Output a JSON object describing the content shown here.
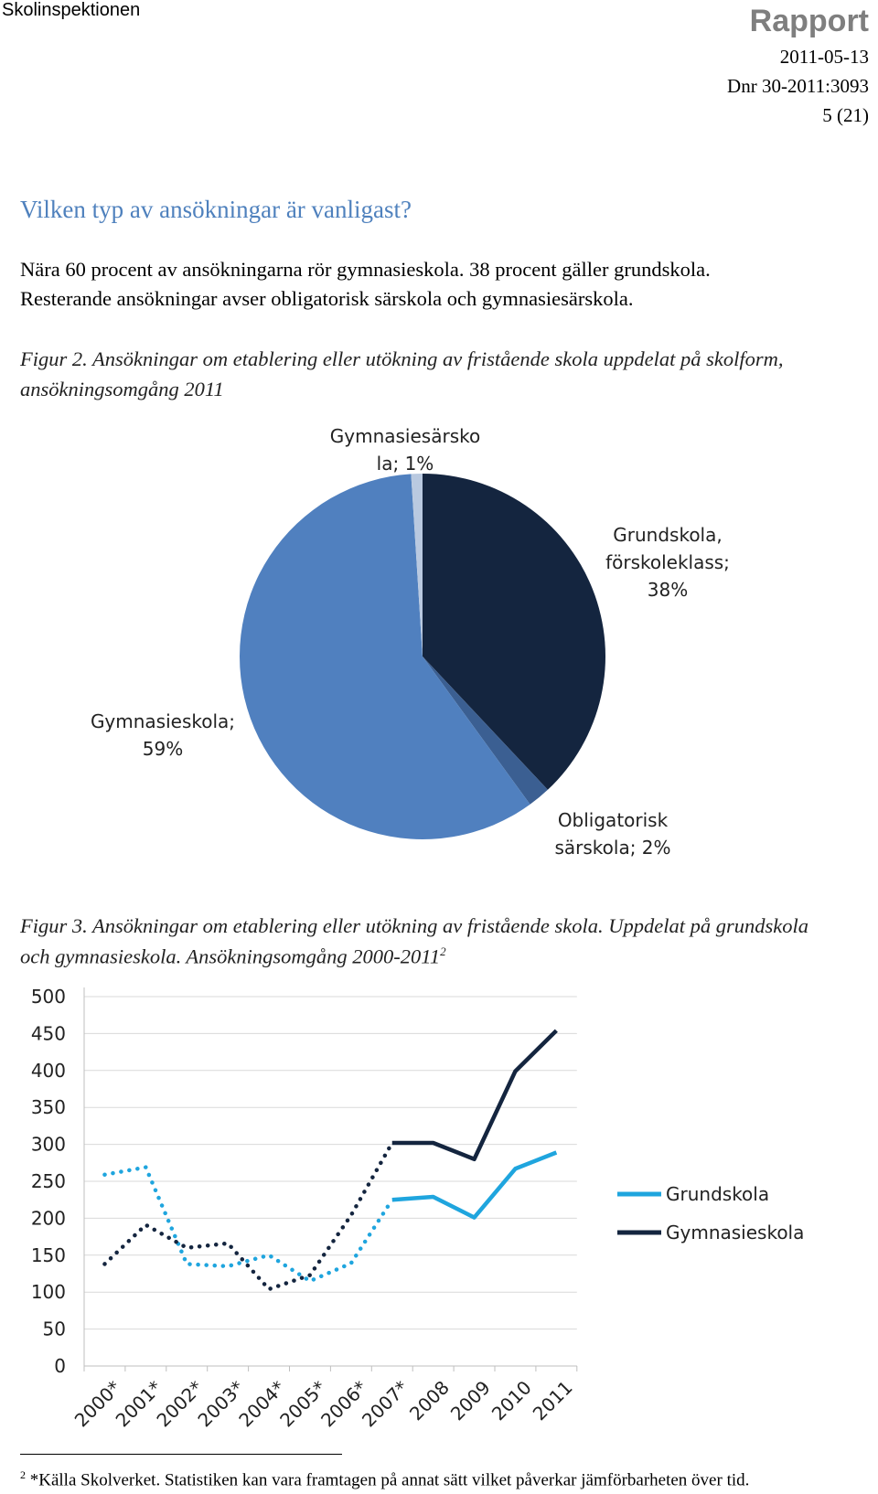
{
  "header": {
    "org": "Skolinspektionen",
    "doc_type": "Rapport",
    "date": "2011-05-13",
    "dnr": "Dnr 30-2011:3093",
    "page": "5 (21)"
  },
  "section": {
    "heading": "Vilken typ av ansökningar är vanligast?",
    "paragraph_lines": [
      "Nära 60 procent av ansökningarna rör gymnasieskola. 38 procent gäller grundskola.",
      "Resterande ansökningar avser obligatorisk särskola och gymnasiesärskola."
    ]
  },
  "figure2": {
    "caption_lines": [
      "Figur 2. Ansökningar om etablering eller utökning av fristående skola uppdelat på skolform,",
      "ansökningsomgång 2011"
    ]
  },
  "figure3": {
    "caption_lines": [
      "Figur 3. Ansökningar om etablering eller utökning av fristående skola. Uppdelat på grundskola",
      "och gymnasieskola. Ansökningsomgång 2000-2011"
    ],
    "caption_sup": "2"
  },
  "chart_data": [
    {
      "type": "pie",
      "slices": [
        {
          "label_lines": [
            "Grundskola,",
            "förskoleklass;",
            "38%"
          ],
          "value": 38,
          "color": "#14253f"
        },
        {
          "label_lines": [
            "Obligatorisk",
            "särskola; 2%"
          ],
          "value": 2,
          "color": "#3b5f92"
        },
        {
          "label_lines": [
            "Gymnasieskola;",
            "59%"
          ],
          "value": 59,
          "color": "#5080bf"
        },
        {
          "label_lines": [
            "Gymnasiesärsko",
            "la; 1%"
          ],
          "value": 1,
          "color": "#b9c9e0"
        }
      ]
    },
    {
      "type": "line",
      "categories": [
        "2000*",
        "2001*",
        "2002*",
        "2003*",
        "2004*",
        "2005*",
        "2006*",
        "2007*",
        "2008",
        "2009",
        "2010",
        "2011"
      ],
      "dotted_until": "2007*",
      "ylim": [
        0,
        500
      ],
      "yticks": [
        0,
        50,
        100,
        150,
        200,
        250,
        300,
        350,
        400,
        450,
        500
      ],
      "legend_position": "right",
      "series": [
        {
          "name": "Grundskola",
          "color": "#1fa5de",
          "values": [
            259,
            269,
            138,
            135,
            150,
            115,
            139,
            225,
            229,
            201,
            267,
            289
          ]
        },
        {
          "name": "Gymnasieskola",
          "color": "#14253f",
          "values": [
            138,
            191,
            160,
            166,
            104,
            123,
            204,
            302,
            302,
            280,
            399,
            454
          ]
        }
      ]
    }
  ],
  "footnote": {
    "marker": "2",
    "text": " *Källa Skolverket. Statistiken kan vara framtagen på annat sätt vilket påverkar jämförbarheten över tid."
  }
}
